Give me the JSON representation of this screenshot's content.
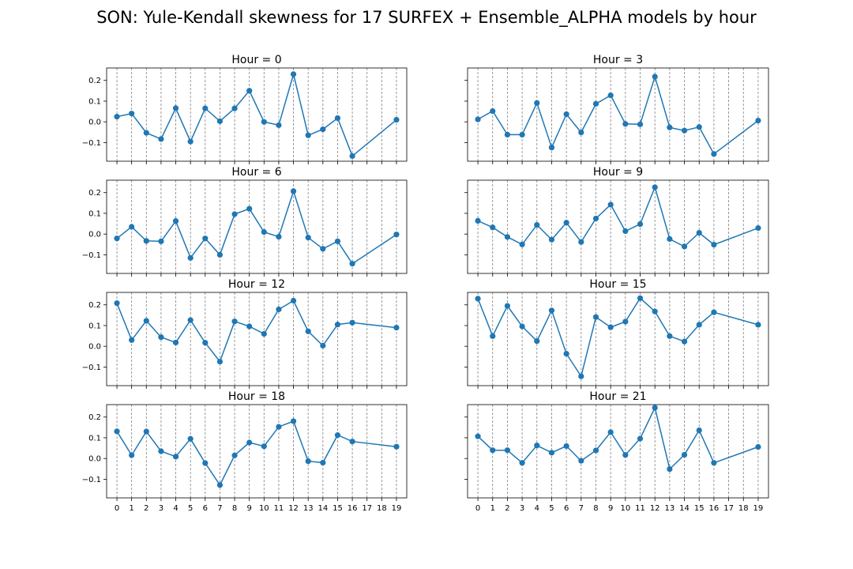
{
  "figure_title": "SON: Yule-Kendall skewness for 17 SURFEX + Ensemble_ALPHA models by hour",
  "colors": {
    "series": "#1f77b4",
    "grid": "#808080",
    "axis": "#000000"
  },
  "chart_data": [
    {
      "type": "line",
      "title": "Hour = 0",
      "x": [
        0,
        1,
        2,
        3,
        4,
        5,
        6,
        7,
        8,
        9,
        10,
        11,
        12,
        13,
        14,
        15,
        16,
        19
      ],
      "y": [
        0.025,
        0.04,
        -0.053,
        -0.083,
        0.066,
        -0.095,
        0.065,
        0.003,
        0.065,
        0.15,
        0.0,
        -0.016,
        0.23,
        -0.065,
        -0.036,
        0.018,
        -0.165,
        0.01
      ],
      "xticks": [
        0,
        1,
        2,
        3,
        4,
        5,
        6,
        7,
        8,
        9,
        10,
        11,
        12,
        13,
        14,
        15,
        16,
        17,
        18,
        19
      ],
      "yticks": [
        "0.2",
        "0.1",
        "0.0",
        "−0.1"
      ],
      "ylim": [
        -0.19,
        0.26
      ],
      "xlim": [
        -0.7,
        19.7
      ],
      "grid": "vertical dashed"
    },
    {
      "type": "line",
      "title": "Hour = 3",
      "x": [
        0,
        1,
        2,
        3,
        4,
        5,
        6,
        7,
        8,
        9,
        10,
        11,
        12,
        13,
        14,
        15,
        16,
        19
      ],
      "y": [
        0.012,
        0.052,
        -0.062,
        -0.062,
        0.091,
        -0.124,
        0.037,
        -0.051,
        0.087,
        0.128,
        -0.01,
        -0.012,
        0.218,
        -0.027,
        -0.042,
        -0.025,
        -0.155,
        0.006
      ],
      "xticks": [
        0,
        1,
        2,
        3,
        4,
        5,
        6,
        7,
        8,
        9,
        10,
        11,
        12,
        13,
        14,
        15,
        16,
        17,
        18,
        19
      ],
      "yticks": [],
      "ylim": [
        -0.19,
        0.26
      ],
      "xlim": [
        -0.7,
        19.7
      ],
      "grid": "vertical dashed"
    },
    {
      "type": "line",
      "title": "Hour = 6",
      "x": [
        0,
        1,
        2,
        3,
        4,
        5,
        6,
        7,
        8,
        9,
        10,
        11,
        12,
        13,
        14,
        15,
        16,
        19
      ],
      "y": [
        -0.021,
        0.035,
        -0.033,
        -0.035,
        0.063,
        -0.115,
        -0.021,
        -0.1,
        0.096,
        0.122,
        0.01,
        -0.013,
        0.207,
        -0.017,
        -0.071,
        -0.035,
        -0.143,
        -0.002
      ],
      "xticks": [
        0,
        1,
        2,
        3,
        4,
        5,
        6,
        7,
        8,
        9,
        10,
        11,
        12,
        13,
        14,
        15,
        16,
        17,
        18,
        19
      ],
      "yticks": [
        "0.2",
        "0.1",
        "0.0",
        "−0.1"
      ],
      "ylim": [
        -0.19,
        0.26
      ],
      "xlim": [
        -0.7,
        19.7
      ],
      "grid": "vertical dashed"
    },
    {
      "type": "line",
      "title": "Hour = 9",
      "x": [
        0,
        1,
        2,
        3,
        4,
        5,
        6,
        7,
        8,
        9,
        10,
        11,
        12,
        13,
        14,
        15,
        16,
        19
      ],
      "y": [
        0.064,
        0.032,
        -0.014,
        -0.05,
        0.044,
        -0.027,
        0.055,
        -0.038,
        0.075,
        0.142,
        0.014,
        0.048,
        0.226,
        -0.024,
        -0.06,
        0.006,
        -0.051,
        0.029
      ],
      "xticks": [
        0,
        1,
        2,
        3,
        4,
        5,
        6,
        7,
        8,
        9,
        10,
        11,
        12,
        13,
        14,
        15,
        16,
        17,
        18,
        19
      ],
      "yticks": [],
      "ylim": [
        -0.19,
        0.26
      ],
      "xlim": [
        -0.7,
        19.7
      ],
      "grid": "vertical dashed"
    },
    {
      "type": "line",
      "title": "Hour = 12",
      "x": [
        0,
        1,
        2,
        3,
        4,
        5,
        6,
        7,
        8,
        9,
        10,
        11,
        12,
        13,
        14,
        15,
        16,
        19
      ],
      "y": [
        0.208,
        0.03,
        0.123,
        0.044,
        0.018,
        0.126,
        0.017,
        -0.074,
        0.12,
        0.096,
        0.06,
        0.178,
        0.22,
        0.072,
        0.003,
        0.105,
        0.114,
        0.09
      ],
      "xticks": [
        0,
        1,
        2,
        3,
        4,
        5,
        6,
        7,
        8,
        9,
        10,
        11,
        12,
        13,
        14,
        15,
        16,
        17,
        18,
        19
      ],
      "yticks": [
        "0.2",
        "0.1",
        "0.0",
        "−0.1"
      ],
      "ylim": [
        -0.19,
        0.26
      ],
      "xlim": [
        -0.7,
        19.7
      ],
      "grid": "vertical dashed"
    },
    {
      "type": "line",
      "title": "Hour = 15",
      "x": [
        0,
        1,
        2,
        3,
        4,
        5,
        6,
        7,
        8,
        9,
        10,
        11,
        12,
        13,
        14,
        15,
        16,
        19
      ],
      "y": [
        0.23,
        0.049,
        0.195,
        0.096,
        0.025,
        0.173,
        -0.036,
        -0.145,
        0.141,
        0.092,
        0.119,
        0.232,
        0.168,
        0.049,
        0.023,
        0.104,
        0.164,
        0.104
      ],
      "xticks": [
        0,
        1,
        2,
        3,
        4,
        5,
        6,
        7,
        8,
        9,
        10,
        11,
        12,
        13,
        14,
        15,
        16,
        17,
        18,
        19
      ],
      "yticks": [],
      "ylim": [
        -0.19,
        0.26
      ],
      "xlim": [
        -0.7,
        19.7
      ],
      "grid": "vertical dashed"
    },
    {
      "type": "line",
      "title": "Hour = 18",
      "x": [
        0,
        1,
        2,
        3,
        4,
        5,
        6,
        7,
        8,
        9,
        10,
        11,
        12,
        13,
        14,
        15,
        16,
        19
      ],
      "y": [
        0.131,
        0.016,
        0.13,
        0.035,
        0.009,
        0.095,
        -0.022,
        -0.128,
        0.015,
        0.077,
        0.059,
        0.153,
        0.18,
        -0.013,
        -0.02,
        0.113,
        0.082,
        0.057
      ],
      "xticks": [
        0,
        1,
        2,
        3,
        4,
        5,
        6,
        7,
        8,
        9,
        10,
        11,
        12,
        13,
        14,
        15,
        16,
        17,
        18,
        19
      ],
      "yticks": [
        "0.2",
        "0.1",
        "0.0",
        "−0.1"
      ],
      "ylim": [
        -0.19,
        0.26
      ],
      "xlim": [
        -0.7,
        19.7
      ],
      "grid": "vertical dashed"
    },
    {
      "type": "line",
      "title": "Hour = 21",
      "x": [
        0,
        1,
        2,
        3,
        4,
        5,
        6,
        7,
        8,
        9,
        10,
        11,
        12,
        13,
        14,
        15,
        16,
        19
      ],
      "y": [
        0.107,
        0.04,
        0.04,
        -0.021,
        0.063,
        0.028,
        0.06,
        -0.011,
        0.039,
        0.127,
        0.017,
        0.096,
        0.245,
        -0.051,
        0.018,
        0.136,
        -0.021,
        0.056
      ],
      "xticks": [
        0,
        1,
        2,
        3,
        4,
        5,
        6,
        7,
        8,
        9,
        10,
        11,
        12,
        13,
        14,
        15,
        16,
        17,
        18,
        19
      ],
      "yticks": [],
      "ylim": [
        -0.19,
        0.26
      ],
      "xlim": [
        -0.7,
        19.7
      ],
      "grid": "vertical dashed"
    }
  ]
}
